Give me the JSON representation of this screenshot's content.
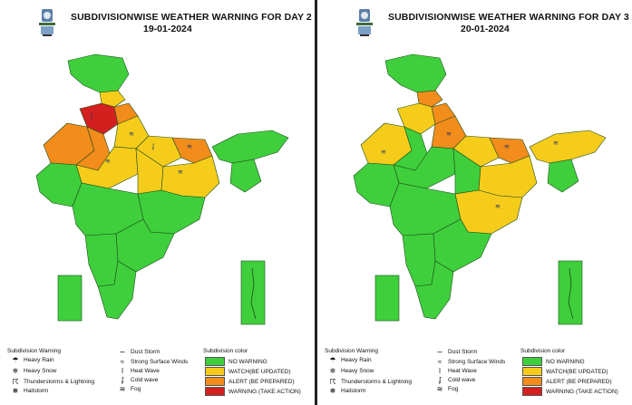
{
  "panels": [
    {
      "title": "SUBDIVISIONWISE WEATHER WARNING FOR DAY 2",
      "date": "19-01-2024"
    },
    {
      "title": "SUBDIVISIONWISE WEATHER WARNING FOR DAY 3",
      "date": "20-01-2024"
    }
  ],
  "legend": {
    "subdivision_warning_header": "Subdivision Warning",
    "subdivision_color_header": "Subdivision color",
    "warning_types_col1": [
      {
        "label": "Heavy Rain",
        "icon": "heavy-rain-icon"
      },
      {
        "label": "Heavy Snow",
        "icon": "heavy-snow-icon"
      },
      {
        "label": "Thunderstorms & Lightning",
        "icon": "thunderstorm-icon"
      },
      {
        "label": "Hailstorm",
        "icon": "hailstorm-icon"
      }
    ],
    "warning_types_col2": [
      {
        "label": "Dust Storm",
        "icon": "dust-storm-icon"
      },
      {
        "label": "Strong Surface Winds",
        "icon": "wind-icon"
      },
      {
        "label": "Heat Wave",
        "icon": "heat-wave-icon"
      },
      {
        "label": "Cold wave",
        "icon": "cold-wave-icon"
      },
      {
        "label": "Fog",
        "icon": "fog-icon"
      }
    ],
    "colors": [
      {
        "label": "NO WARNING",
        "color": "#3fcf3c"
      },
      {
        "label": "WATCH(BE UPDATED)",
        "color": "#f6cc1a"
      },
      {
        "label": "ALERT (BE PREPARED)",
        "color": "#f28c1b"
      },
      {
        "label": "WARNING (TAKE ACTION)",
        "color": "#d41f1f"
      }
    ]
  },
  "map_colors": {
    "green": "#3fcf3c",
    "yellow": "#f6cc1a",
    "orange": "#f28c1b",
    "red": "#d41f1f",
    "border": "#1c4d1c"
  }
}
